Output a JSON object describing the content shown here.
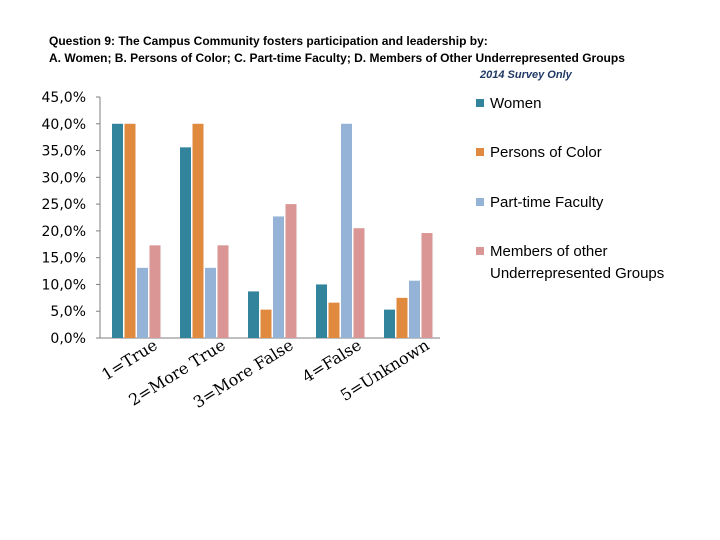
{
  "title_line1": "Question 9: The Campus Community fosters participation and leadership by:",
  "title_line2": "A. Women; B. Persons of Color; C. Part-time Faculty; D. Members of Other Underrepresented Groups",
  "subtitle": "2014 Survey Only",
  "chart_data": {
    "type": "bar",
    "categories": [
      "1=True",
      "2=More True",
      "3=More False",
      "4=False",
      "5=Unknown"
    ],
    "series": [
      {
        "name": "Women",
        "color": "#31849b",
        "values": [
          40.0,
          35.6,
          8.7,
          10.0,
          5.3
        ]
      },
      {
        "name": "Persons of Color",
        "color": "#e08a40",
        "values": [
          40.0,
          40.0,
          5.3,
          6.6,
          7.5
        ]
      },
      {
        "name": "Part-time Faculty",
        "color": "#95b3d7",
        "values": [
          13.1,
          13.1,
          22.7,
          40.0,
          10.7
        ]
      },
      {
        "name": "Members of other Underrepresented Groups",
        "color": "#d99694",
        "values": [
          17.3,
          17.3,
          25.0,
          20.5,
          19.6
        ]
      }
    ],
    "yticks": [
      "0,0%",
      "5,0%",
      "10,0%",
      "15,0%",
      "20,0%",
      "25,0%",
      "30,0%",
      "35,0%",
      "40,0%",
      "45,0%"
    ],
    "ylim": [
      0,
      45
    ],
    "legend_position": "right",
    "grid": false
  }
}
